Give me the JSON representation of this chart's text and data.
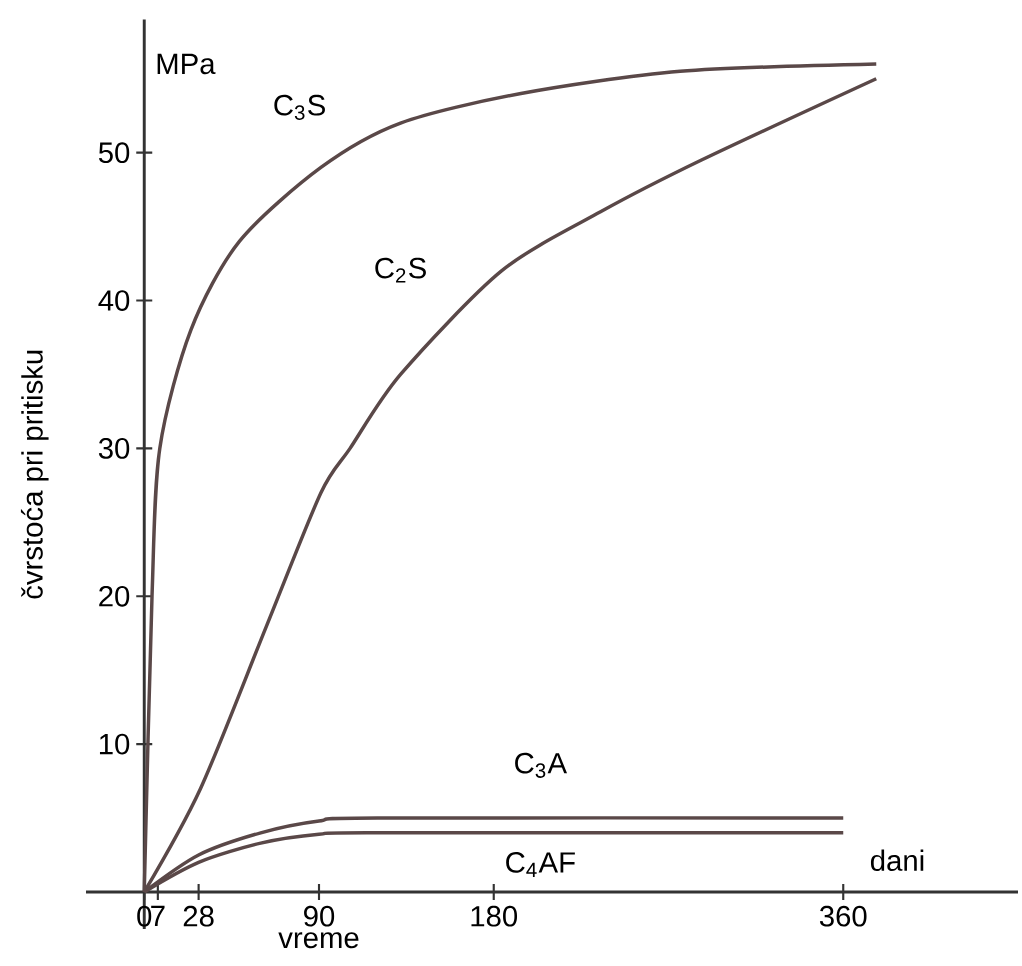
{
  "chart_data": {
    "type": "line",
    "xlabel": "vreme",
    "ylabel": "čvrstoća pri pritisku",
    "annotations": [
      "MPa",
      "dani"
    ],
    "xlim": [
      -30,
      450
    ],
    "ylim": [
      -2.5,
      59
    ],
    "xticks": [
      0,
      7,
      28,
      90,
      180,
      360
    ],
    "yticks": [
      10,
      20,
      30,
      40,
      50
    ],
    "grid": false,
    "marker": "none",
    "line_style": "solid",
    "series": [
      {
        "name": "C$_{3}$S",
        "color": "#5a4848",
        "x": [
          0,
          4,
          8,
          24,
          49,
          91,
          132,
          194,
          276,
          377
        ],
        "values": [
          0,
          20,
          30,
          38,
          44,
          49,
          52,
          54,
          55.5,
          56
        ]
      },
      {
        "name": "C$_{2}$S",
        "color": "#5a4848",
        "x": [
          0,
          29,
          63,
          91,
          106,
          132,
          184,
          235,
          287,
          377
        ],
        "values": [
          0,
          7,
          18,
          27,
          30,
          35,
          42,
          46,
          49.5,
          55
        ]
      },
      {
        "name": "C$_{3}$A",
        "color": "#5a4848",
        "x": [
          0,
          28,
          60,
          90,
          120,
          360
        ],
        "values": [
          0,
          2.5,
          4,
          4.8,
          5,
          5
        ]
      },
      {
        "name": "C$_{4}$AF",
        "color": "#5a4848",
        "x": [
          0,
          28,
          60,
          90,
          120,
          360
        ],
        "values": [
          0,
          2,
          3.3,
          3.9,
          4,
          4
        ]
      }
    ]
  }
}
